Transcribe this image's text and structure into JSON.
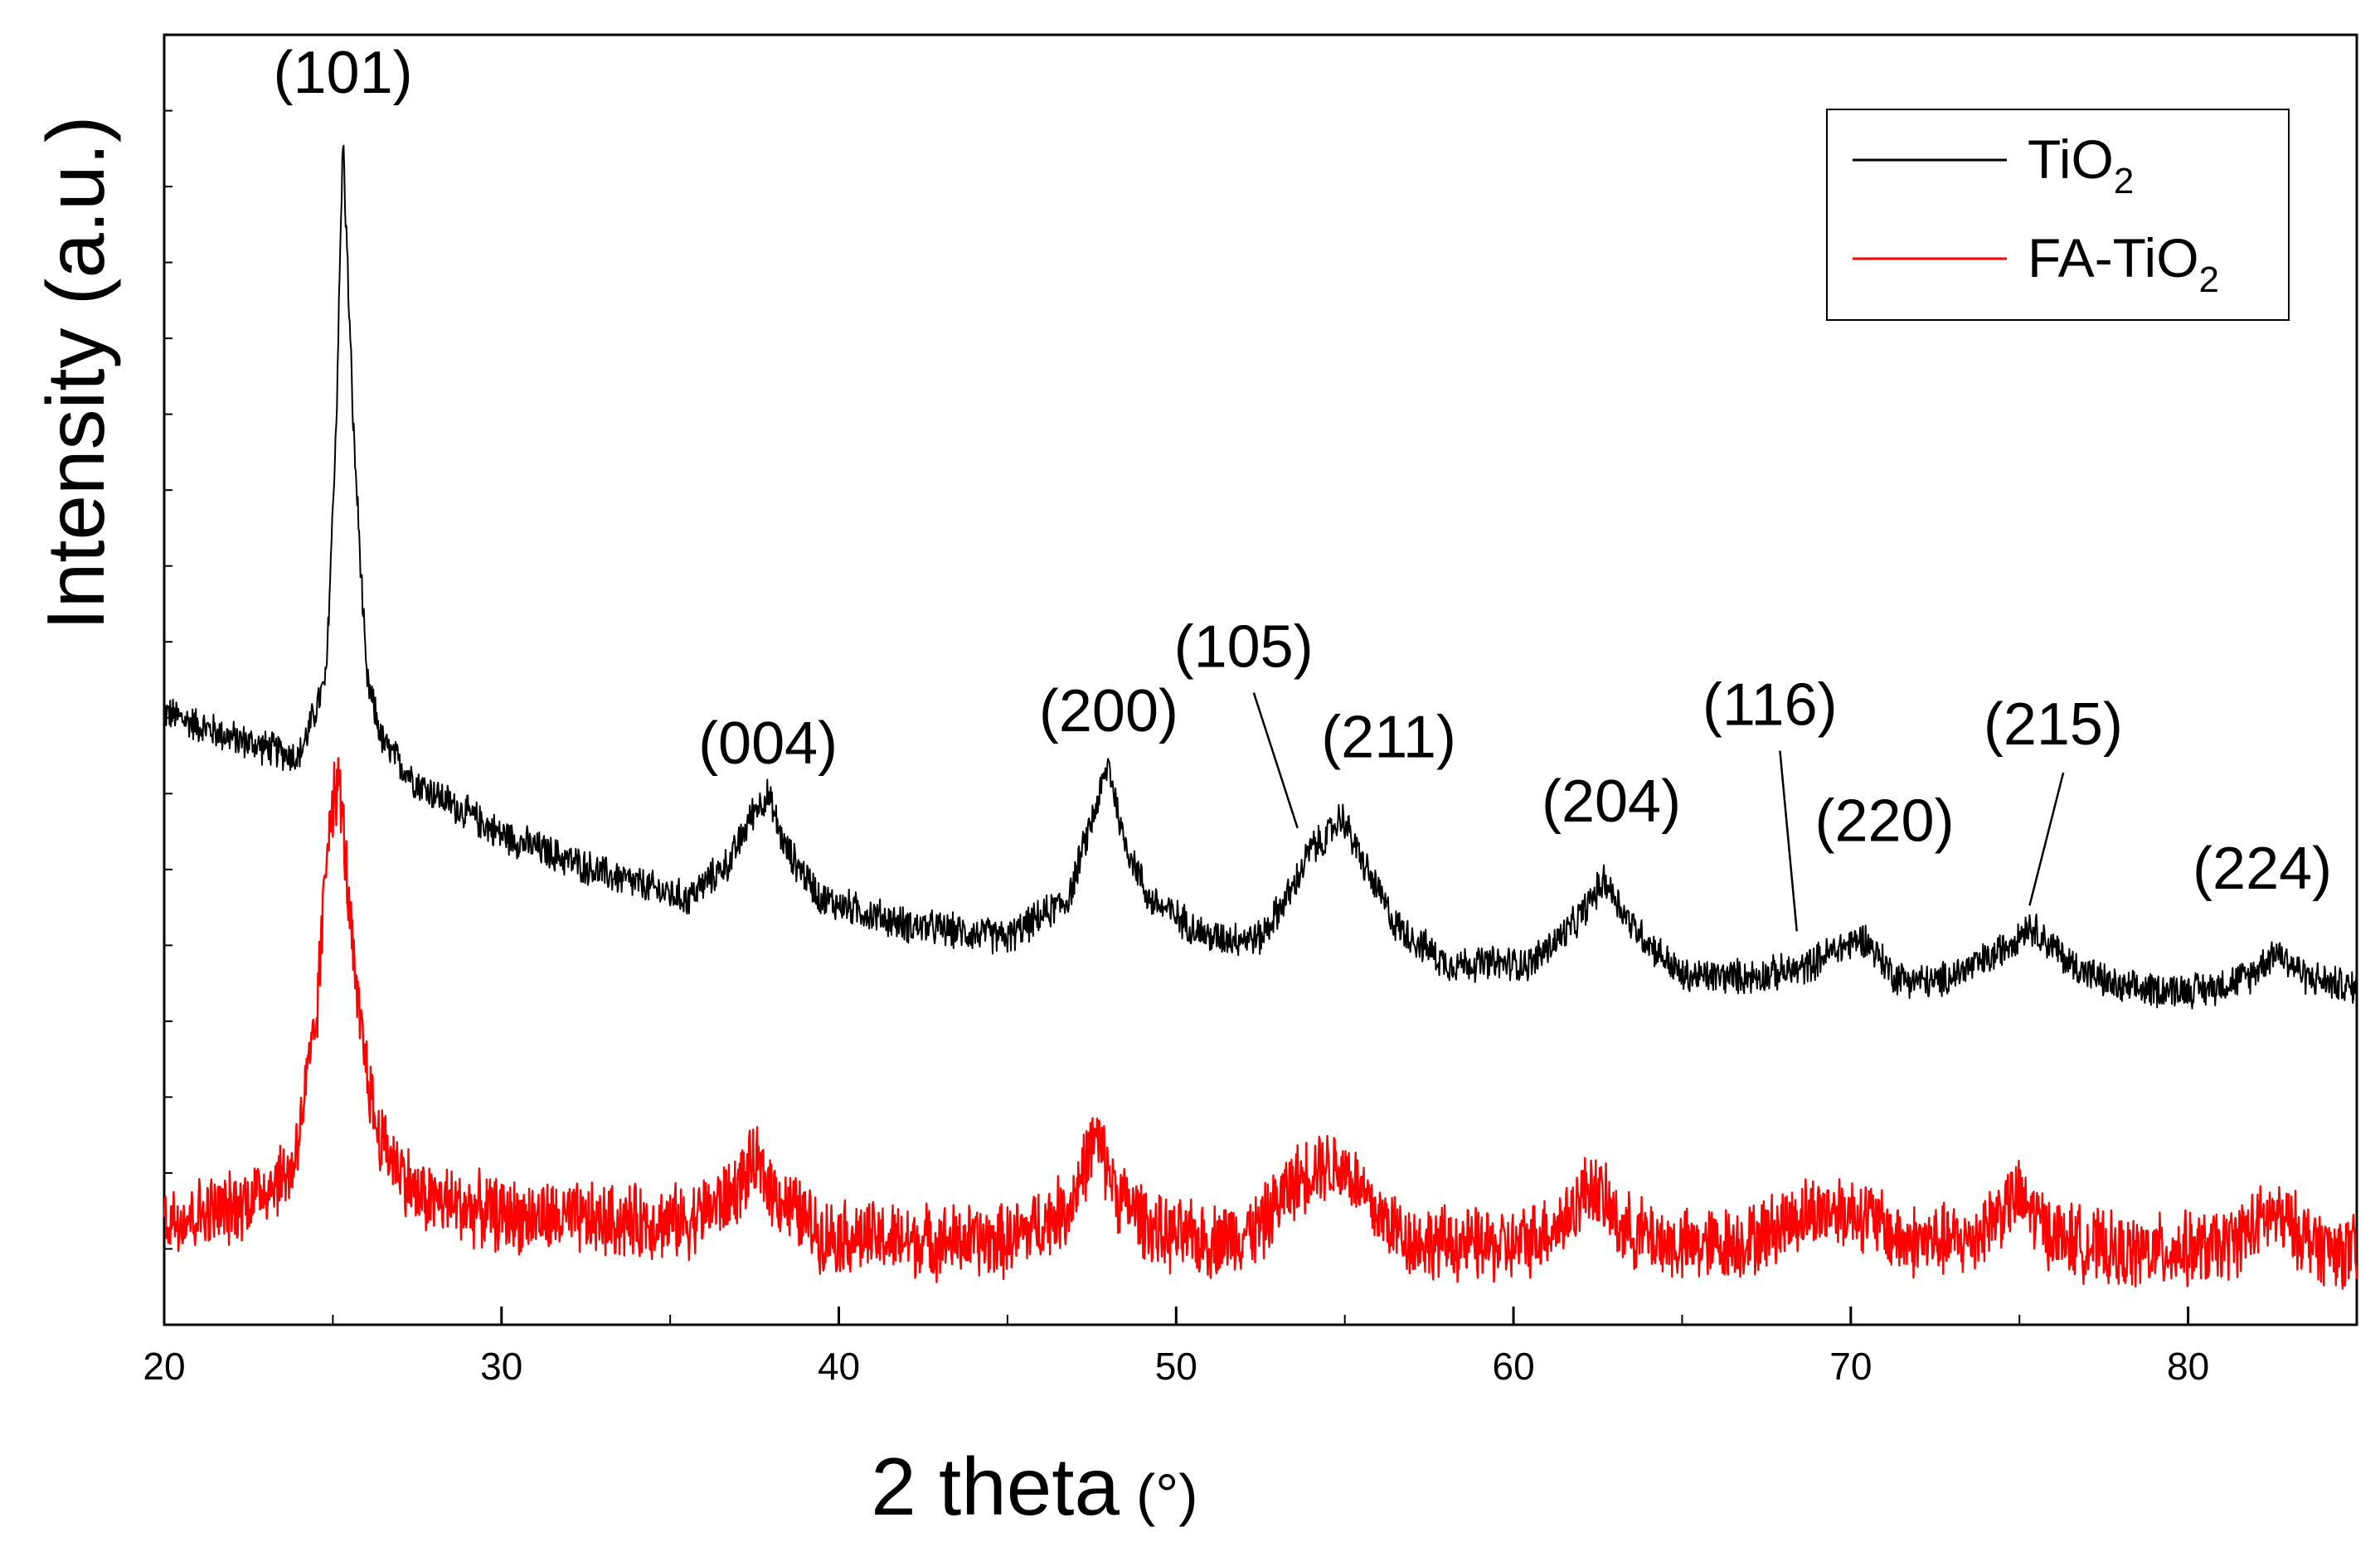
{
  "chart_data": {
    "type": "line",
    "title": "",
    "xlabel": "2 theta",
    "xlabel_unit": "(°)",
    "ylabel": "Intensity (a.u.)",
    "xlim": [
      20,
      85
    ],
    "xticks": [
      20,
      30,
      40,
      50,
      60,
      70,
      80
    ],
    "ylim": [
      0,
      1.0
    ],
    "y_tick_count": 17,
    "grid": false,
    "legend_position": "top-right",
    "series": [
      {
        "name": "TiO2",
        "legend_main": "TiO",
        "legend_sub": "2",
        "color": "#000000",
        "noise": 0.012,
        "x": [
          20,
          22,
          24,
          24.8,
          25.1,
          25.3,
          25.6,
          26.0,
          26.5,
          27.5,
          30,
          33,
          35.5,
          36.8,
          37.5,
          37.9,
          38.4,
          39.5,
          42,
          45,
          46.8,
          47.6,
          48.0,
          48.4,
          49.2,
          51,
          52.5,
          53.5,
          54.0,
          54.4,
          54.9,
          55.5,
          56.5,
          58,
          60.5,
          61.8,
          62.7,
          63.5,
          65,
          67,
          68.5,
          69.5,
          70.4,
          71.3,
          72.5,
          74.2,
          75.3,
          76.5,
          78,
          80.5,
          81.8,
          82.6,
          83.5,
          85
        ],
        "y": [
          0.475,
          0.455,
          0.44,
          0.5,
          0.7,
          0.92,
          0.7,
          0.5,
          0.45,
          0.42,
          0.38,
          0.35,
          0.33,
          0.36,
          0.4,
          0.41,
          0.37,
          0.33,
          0.31,
          0.3,
          0.33,
          0.4,
          0.435,
          0.38,
          0.33,
          0.3,
          0.3,
          0.34,
          0.37,
          0.375,
          0.395,
          0.36,
          0.31,
          0.28,
          0.28,
          0.31,
          0.345,
          0.31,
          0.27,
          0.27,
          0.275,
          0.29,
          0.3,
          0.27,
          0.265,
          0.285,
          0.31,
          0.28,
          0.26,
          0.26,
          0.27,
          0.29,
          0.27,
          0.26
        ]
      },
      {
        "name": "FA-TiO2",
        "legend_main": "FA-TiO",
        "legend_sub": "2",
        "color": "#ff0000",
        "noise": 0.025,
        "x": [
          20,
          22,
          23.8,
          24.5,
          24.9,
          25.2,
          25.7,
          26.3,
          27.5,
          30,
          33,
          35.5,
          36.8,
          37.5,
          38.2,
          39.5,
          42,
          45,
          46.8,
          47.6,
          48.3,
          49.5,
          51,
          52.5,
          53.3,
          54.2,
          55.1,
          55.8,
          57,
          60,
          61.5,
          62.3,
          63.2,
          65,
          67,
          68.5,
          69.5,
          70.5,
          71.5,
          73.5,
          74.9,
          76,
          78,
          81,
          82.5,
          84,
          85
        ],
        "y": [
          0.082,
          0.09,
          0.12,
          0.23,
          0.4,
          0.42,
          0.25,
          0.15,
          0.1,
          0.085,
          0.08,
          0.08,
          0.1,
          0.125,
          0.1,
          0.07,
          0.065,
          0.065,
          0.09,
          0.145,
          0.1,
          0.07,
          0.065,
          0.075,
          0.105,
          0.125,
          0.12,
          0.09,
          0.065,
          0.06,
          0.08,
          0.11,
          0.075,
          0.06,
          0.065,
          0.085,
          0.09,
          0.085,
          0.065,
          0.065,
          0.1,
          0.07,
          0.055,
          0.06,
          0.085,
          0.06,
          0.055
        ]
      }
    ],
    "annotations": [
      {
        "label": "(101)",
        "x": 25.3,
        "label_x": 25.3,
        "label_y": 0.955,
        "leader": false
      },
      {
        "label": "(004)",
        "x": 37.9,
        "label_x": 37.9,
        "label_y": 0.435,
        "leader": false
      },
      {
        "label": "(200)",
        "x": 48.0,
        "label_x": 48.0,
        "label_y": 0.46,
        "leader": false
      },
      {
        "label": "(105)",
        "x": 53.6,
        "label_x": 52.0,
        "label_y": 0.51,
        "leader": true,
        "leader_from_y": 0.49,
        "leader_to_y": 0.385
      },
      {
        "label": "(211)",
        "x": 54.9,
        "label_x": 56.3,
        "label_y": 0.44,
        "leader": false
      },
      {
        "label": "(204)",
        "x": 62.7,
        "label_x": 62.9,
        "label_y": 0.39,
        "leader": false
      },
      {
        "label": "(116)",
        "x": 68.4,
        "label_x": 67.6,
        "label_y": 0.465,
        "leader": true,
        "leader_from_y": 0.445,
        "leader_to_y": 0.305
      },
      {
        "label": "(220)",
        "x": 70.4,
        "label_x": 71.0,
        "label_y": 0.375,
        "leader": false
      },
      {
        "label": "(215)",
        "x": 75.3,
        "label_x": 76.0,
        "label_y": 0.45,
        "leader": true,
        "leader_from_y": 0.428,
        "leader_to_y": 0.325
      },
      {
        "label": "(224)",
        "x": 82.6,
        "label_x": 82.2,
        "label_y": 0.338,
        "leader": false
      }
    ]
  }
}
